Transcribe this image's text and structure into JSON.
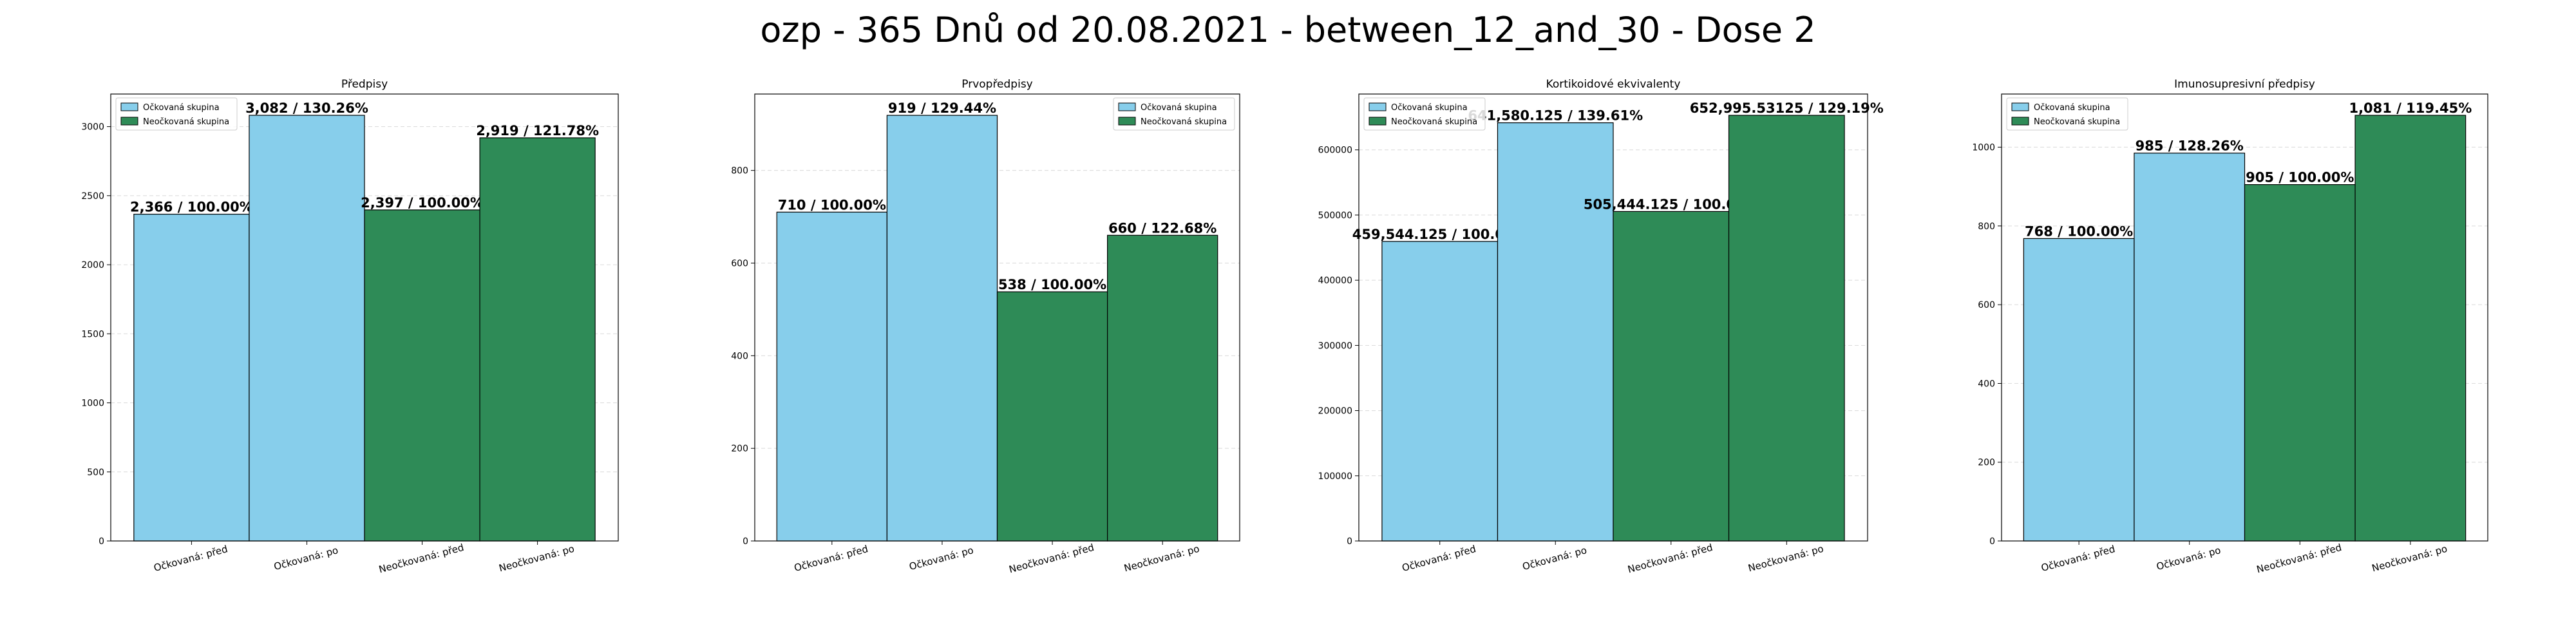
{
  "suptitle": "ozp - 365 Dnů od 20.08.2021 - between_12_and_30 - Dose 2",
  "colors": {
    "vaccinated": "#87CEEB",
    "unvaccinated": "#2E8B57"
  },
  "legend": {
    "vaccinated": "Očkovaná skupina",
    "unvaccinated": "Neočkovaná skupina"
  },
  "chart_data": [
    {
      "type": "bar",
      "title": "Předpisy",
      "categories": [
        "Očkovaná: před",
        "Očkovaná: po",
        "Neočkovaná: před",
        "Neočkovaná: po"
      ],
      "values": [
        2366,
        3082,
        2397,
        2919
      ],
      "data_labels": [
        "2,366 / 100.00%",
        "3,082 / 130.26%",
        "2,397 / 100.00%",
        "2,919 / 121.78%"
      ],
      "bar_groups": [
        "vaccinated",
        "vaccinated",
        "unvaccinated",
        "unvaccinated"
      ],
      "ylim": [
        0,
        3236
      ],
      "yticks": [
        0,
        500,
        1000,
        1500,
        2000,
        2500,
        3000
      ],
      "ytick_labels": [
        "0",
        "500",
        "1000",
        "1500",
        "2000",
        "2500",
        "3000"
      ],
      "legend_position": "upper-left",
      "grid": true
    },
    {
      "type": "bar",
      "title": "Prvopředpisy",
      "categories": [
        "Očkovaná: před",
        "Očkovaná: po",
        "Neočkovaná: před",
        "Neočkovaná: po"
      ],
      "values": [
        710,
        919,
        538,
        660
      ],
      "data_labels": [
        "710 / 100.00%",
        "919 / 129.44%",
        "538 / 100.00%",
        "660 / 122.68%"
      ],
      "bar_groups": [
        "vaccinated",
        "vaccinated",
        "unvaccinated",
        "unvaccinated"
      ],
      "ylim": [
        0,
        965
      ],
      "yticks": [
        0,
        200,
        400,
        600,
        800
      ],
      "ytick_labels": [
        "0",
        "200",
        "400",
        "600",
        "800"
      ],
      "legend_position": "upper-right",
      "grid": true
    },
    {
      "type": "bar",
      "title": "Kortikoidové ekvivalenty",
      "categories": [
        "Očkovaná: před",
        "Očkovaná: po",
        "Neočkovaná: před",
        "Neočkovaná: po"
      ],
      "values": [
        459544.125,
        641580.125,
        505444.125,
        652995.53125
      ],
      "data_labels": [
        "459,544.125 / 100.00%",
        "641,580.125 / 139.61%",
        "505,444.125 / 100.00%",
        "652,995.53125 / 129.19%"
      ],
      "bar_groups": [
        "vaccinated",
        "vaccinated",
        "unvaccinated",
        "unvaccinated"
      ],
      "ylim": [
        0,
        685645
      ],
      "yticks": [
        0,
        100000,
        200000,
        300000,
        400000,
        500000,
        600000
      ],
      "ytick_labels": [
        "0",
        "100000",
        "200000",
        "300000",
        "400000",
        "500000",
        "600000"
      ],
      "legend_position": "upper-left",
      "grid": true
    },
    {
      "type": "bar",
      "title": "Imunosupresivní předpisy",
      "categories": [
        "Očkovaná: před",
        "Očkovaná: po",
        "Neočkovaná: před",
        "Neočkovaná: po"
      ],
      "values": [
        768,
        985,
        905,
        1081
      ],
      "data_labels": [
        "768 / 100.00%",
        "985 / 128.26%",
        "905 / 100.00%",
        "1,081 / 119.45%"
      ],
      "bar_groups": [
        "vaccinated",
        "vaccinated",
        "unvaccinated",
        "unvaccinated"
      ],
      "ylim": [
        0,
        1135
      ],
      "yticks": [
        0,
        200,
        400,
        600,
        800,
        1000
      ],
      "ytick_labels": [
        "0",
        "200",
        "400",
        "600",
        "800",
        "1000"
      ],
      "legend_position": "upper-left",
      "grid": true
    }
  ]
}
